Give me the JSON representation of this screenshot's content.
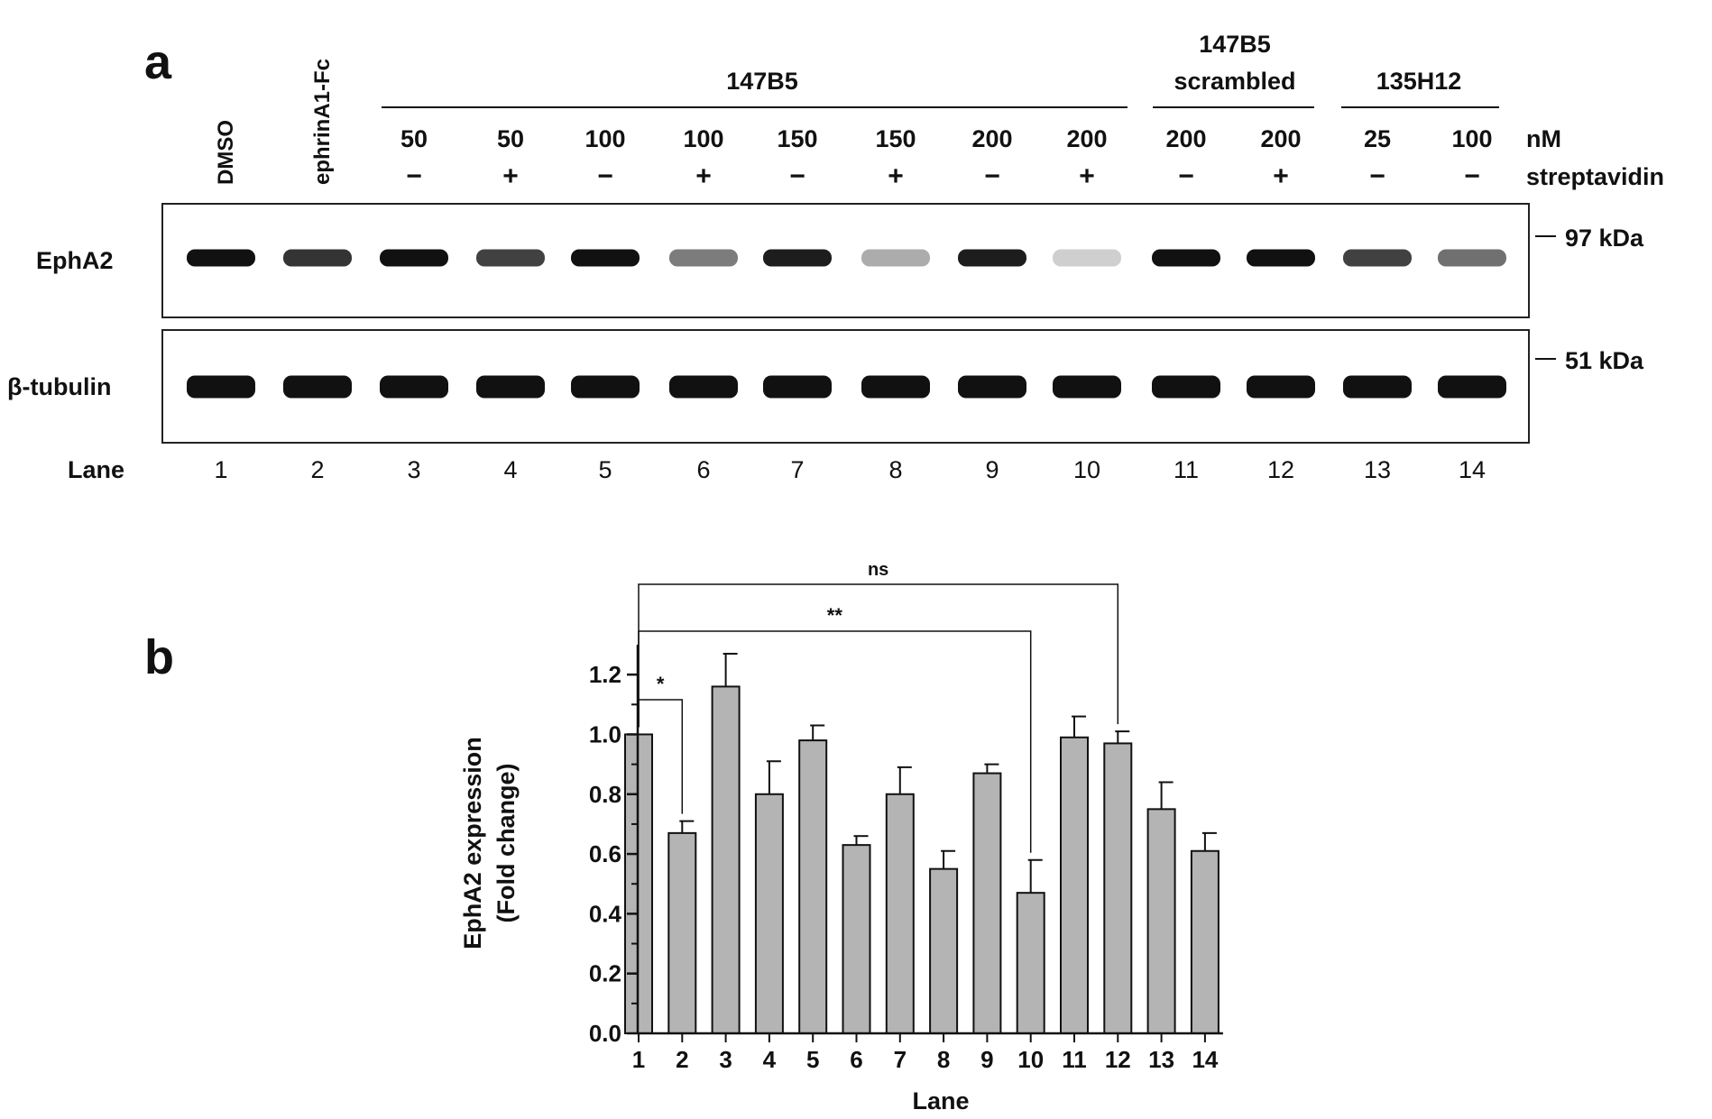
{
  "panel_a": {
    "panel_label": "a",
    "top_labels": {
      "lane1": "DMSO",
      "lane2": "ephrinA1-Fc",
      "group_147B5": "147B5",
      "group_scrambled_line1": "147B5",
      "group_scrambled_line2": "scrambled",
      "group_135H12": "135H12"
    },
    "conc_values": [
      "50",
      "50",
      "100",
      "100",
      "150",
      "150",
      "200",
      "200",
      "200",
      "200",
      "25",
      "100"
    ],
    "conc_unit": "nM",
    "strep_values": [
      "−",
      "+",
      "−",
      "+",
      "−",
      "+",
      "−",
      "+",
      "−",
      "+",
      "−",
      "−"
    ],
    "strep_label": "streptavidin",
    "blot_labels": {
      "epha2": "EphA2",
      "tubulin": "β-tubulin"
    },
    "markers": {
      "epha2": "97 kDa",
      "tubulin": "51 kDa"
    },
    "lane_label": "Lane",
    "lane_numbers": [
      "1",
      "2",
      "3",
      "4",
      "5",
      "6",
      "7",
      "8",
      "9",
      "10",
      "11",
      "12",
      "13",
      "14"
    ],
    "epha2_band_intensity": [
      1.0,
      0.85,
      1.05,
      0.8,
      1.0,
      0.55,
      0.95,
      0.35,
      0.95,
      0.2,
      1.0,
      1.0,
      0.8,
      0.6
    ],
    "tubulin_band_intensity": [
      1.0,
      1.0,
      1.0,
      1.0,
      1.0,
      1.0,
      1.0,
      1.0,
      1.0,
      1.0,
      1.0,
      1.0,
      1.0,
      1.0
    ]
  },
  "panel_b": {
    "panel_label": "b"
  },
  "chart_data": {
    "type": "bar",
    "title": "",
    "xlabel": "Lane",
    "ylabel_line1": "EphA2 expression",
    "ylabel_line2": "(Fold change)",
    "categories": [
      "1",
      "2",
      "3",
      "4",
      "5",
      "6",
      "7",
      "8",
      "9",
      "10",
      "11",
      "12",
      "13",
      "14"
    ],
    "values": [
      1.0,
      0.67,
      1.16,
      0.8,
      0.98,
      0.63,
      0.8,
      0.55,
      0.87,
      0.47,
      0.99,
      0.97,
      0.75,
      0.61
    ],
    "errors": [
      0.0,
      0.04,
      0.11,
      0.11,
      0.05,
      0.03,
      0.09,
      0.06,
      0.03,
      0.11,
      0.07,
      0.04,
      0.09,
      0.06
    ],
    "ylim": [
      0,
      1.3
    ],
    "yticks": [
      "0.0",
      "0.2",
      "0.4",
      "0.6",
      "0.8",
      "1.0",
      "1.2"
    ],
    "bar_color": "#b4b4b4",
    "grid": false,
    "significance": [
      {
        "from": "1",
        "to": "2",
        "label": "*"
      },
      {
        "from": "1",
        "to": "10",
        "label": "**"
      },
      {
        "from": "1",
        "to": "12",
        "label": "ns"
      }
    ]
  }
}
